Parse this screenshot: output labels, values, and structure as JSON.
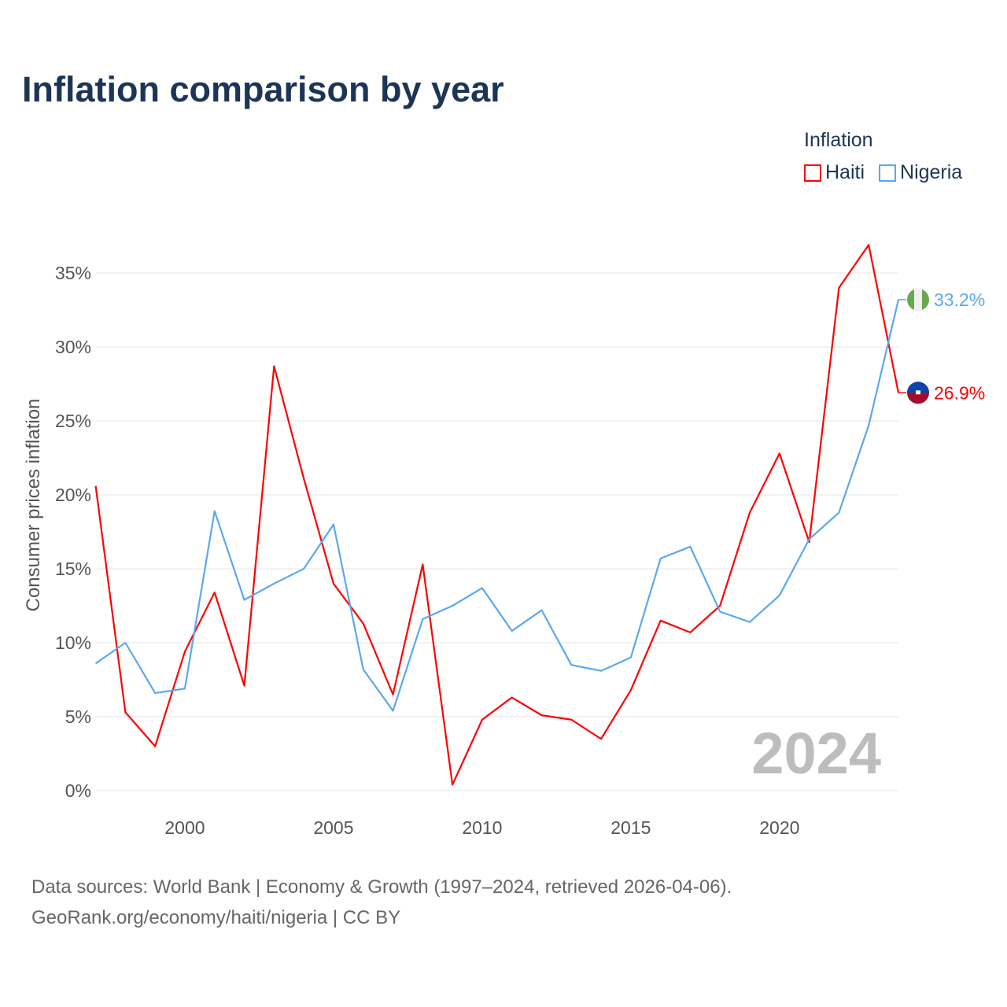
{
  "title": "Inflation comparison by year",
  "legend": {
    "title": "Inflation",
    "items": [
      {
        "label": "Haiti",
        "color": "#ff0000"
      },
      {
        "label": "Nigeria",
        "color": "#5ba8ec"
      }
    ]
  },
  "watermark_year": "2024",
  "source_line1": "Data sources: World Bank | Economy & Growth (1997–2024, retrieved 2026-04-06).",
  "source_line2": "GeoRank.org/economy/haiti/nigeria | CC BY",
  "chart_data": {
    "type": "line",
    "title": "Inflation comparison by year",
    "xlabel": "",
    "ylabel": "Consumer prices inflation",
    "xlim": [
      1997,
      2024
    ],
    "ylim": [
      0,
      37
    ],
    "x_ticks": [
      2000,
      2005,
      2010,
      2015,
      2020
    ],
    "y_ticks": [
      0,
      5,
      10,
      15,
      20,
      25,
      30,
      35
    ],
    "y_tick_labels": [
      "0%",
      "5%",
      "10%",
      "15%",
      "20%",
      "25%",
      "30%",
      "35%"
    ],
    "grid": "horizontal",
    "legend_position": "top-right",
    "x": [
      1997,
      1998,
      1999,
      2000,
      2001,
      2002,
      2003,
      2004,
      2005,
      2006,
      2007,
      2008,
      2009,
      2010,
      2011,
      2012,
      2013,
      2014,
      2015,
      2016,
      2017,
      2018,
      2019,
      2020,
      2021,
      2022,
      2023,
      2024
    ],
    "series": [
      {
        "name": "Haiti",
        "color": "#ff0000",
        "end_label": "26.9%",
        "values": [
          20.6,
          5.3,
          3.0,
          9.4,
          13.4,
          7.1,
          28.7,
          21.1,
          14.0,
          11.3,
          6.5,
          15.3,
          0.4,
          4.8,
          6.3,
          5.1,
          4.8,
          3.5,
          6.8,
          11.5,
          10.7,
          12.5,
          18.8,
          22.8,
          16.8,
          34.0,
          36.9,
          26.9
        ]
      },
      {
        "name": "Nigeria",
        "color": "#5ba8ec",
        "end_label": "33.2%",
        "values": [
          8.6,
          10.0,
          6.6,
          6.9,
          18.9,
          12.9,
          14.0,
          15.0,
          18.0,
          8.2,
          5.4,
          11.6,
          12.5,
          13.7,
          10.8,
          12.2,
          8.5,
          8.1,
          9.0,
          15.7,
          16.5,
          12.1,
          11.4,
          13.2,
          17.0,
          18.8,
          24.7,
          33.2
        ]
      }
    ]
  }
}
